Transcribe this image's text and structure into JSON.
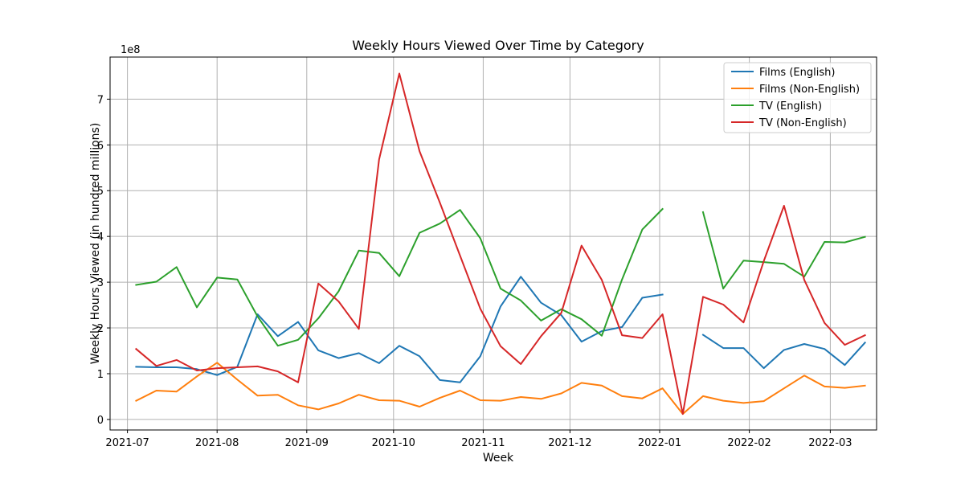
{
  "chart_data": {
    "type": "line",
    "title": "Weekly Hours Viewed Over Time by Category",
    "xlabel": "Week",
    "ylabel": "Weekly Hours Viewed (in hundred millions)",
    "y_offset_label": "1e8",
    "xlim": [
      "2021-06-25",
      "2022-03-17"
    ],
    "ylim": [
      -0.23,
      7.92
    ],
    "x_ticks": [
      "2021-07",
      "2021-08",
      "2021-09",
      "2021-10",
      "2021-11",
      "2021-12",
      "2022-01",
      "2022-02",
      "2022-03"
    ],
    "y_ticks": [
      0,
      1,
      2,
      3,
      4,
      5,
      6,
      7
    ],
    "grid": true,
    "legend_position": "top-right",
    "series": [
      {
        "name": "Films (English)",
        "color": "#1f77b4",
        "points": [
          {
            "x": "2021-07-04",
            "y": 1.15
          },
          {
            "x": "2021-07-11",
            "y": 1.14
          },
          {
            "x": "2021-07-18",
            "y": 1.14
          },
          {
            "x": "2021-07-25",
            "y": 1.1
          },
          {
            "x": "2021-08-01",
            "y": 0.97
          },
          {
            "x": "2021-08-08",
            "y": 1.15
          },
          {
            "x": "2021-08-15",
            "y": 2.3
          },
          {
            "x": "2021-08-22",
            "y": 1.82
          },
          {
            "x": "2021-08-29",
            "y": 2.13
          },
          {
            "x": "2021-09-05",
            "y": 1.51
          },
          {
            "x": "2021-09-12",
            "y": 1.34
          },
          {
            "x": "2021-09-19",
            "y": 1.45
          },
          {
            "x": "2021-09-26",
            "y": 1.23
          },
          {
            "x": "2021-10-03",
            "y": 1.61
          },
          {
            "x": "2021-10-10",
            "y": 1.38
          },
          {
            "x": "2021-10-17",
            "y": 0.86
          },
          {
            "x": "2021-10-24",
            "y": 0.81
          },
          {
            "x": "2021-10-31",
            "y": 1.38
          },
          {
            "x": "2021-11-07",
            "y": 2.47
          },
          {
            "x": "2021-11-14",
            "y": 3.12
          },
          {
            "x": "2021-11-21",
            "y": 2.55
          },
          {
            "x": "2021-11-28",
            "y": 2.28
          },
          {
            "x": "2021-12-05",
            "y": 1.7
          },
          {
            "x": "2021-12-12",
            "y": 1.93
          },
          {
            "x": "2021-12-19",
            "y": 2.02
          },
          {
            "x": "2021-12-26",
            "y": 2.66
          },
          {
            "x": "2022-01-02",
            "y": 2.73
          },
          {
            "x": "2022-01-09",
            "y": null
          },
          {
            "x": "2022-01-16",
            "y": 1.85
          },
          {
            "x": "2022-01-23",
            "y": 1.56
          },
          {
            "x": "2022-01-30",
            "y": 1.56
          },
          {
            "x": "2022-02-06",
            "y": 1.12
          },
          {
            "x": "2022-02-13",
            "y": 1.52
          },
          {
            "x": "2022-02-20",
            "y": 1.65
          },
          {
            "x": "2022-02-27",
            "y": 1.54
          },
          {
            "x": "2022-03-06",
            "y": 1.19
          },
          {
            "x": "2022-03-13",
            "y": 1.68
          }
        ]
      },
      {
        "name": "Films (Non-English)",
        "color": "#ff7f0e",
        "points": [
          {
            "x": "2021-07-04",
            "y": 0.41
          },
          {
            "x": "2021-07-11",
            "y": 0.63
          },
          {
            "x": "2021-07-18",
            "y": 0.61
          },
          {
            "x": "2021-07-25",
            "y": 0.94
          },
          {
            "x": "2021-08-01",
            "y": 1.24
          },
          {
            "x": "2021-08-08",
            "y": 0.87
          },
          {
            "x": "2021-08-15",
            "y": 0.52
          },
          {
            "x": "2021-08-22",
            "y": 0.54
          },
          {
            "x": "2021-08-29",
            "y": 0.31
          },
          {
            "x": "2021-09-05",
            "y": 0.22
          },
          {
            "x": "2021-09-12",
            "y": 0.35
          },
          {
            "x": "2021-09-19",
            "y": 0.54
          },
          {
            "x": "2021-09-26",
            "y": 0.42
          },
          {
            "x": "2021-10-03",
            "y": 0.41
          },
          {
            "x": "2021-10-10",
            "y": 0.28
          },
          {
            "x": "2021-10-17",
            "y": 0.47
          },
          {
            "x": "2021-10-24",
            "y": 0.63
          },
          {
            "x": "2021-10-31",
            "y": 0.42
          },
          {
            "x": "2021-11-07",
            "y": 0.41
          },
          {
            "x": "2021-11-14",
            "y": 0.49
          },
          {
            "x": "2021-11-21",
            "y": 0.45
          },
          {
            "x": "2021-11-28",
            "y": 0.57
          },
          {
            "x": "2021-12-05",
            "y": 0.8
          },
          {
            "x": "2021-12-12",
            "y": 0.74
          },
          {
            "x": "2021-12-19",
            "y": 0.51
          },
          {
            "x": "2021-12-26",
            "y": 0.46
          },
          {
            "x": "2022-01-02",
            "y": 0.68
          },
          {
            "x": "2022-01-09",
            "y": 0.12
          },
          {
            "x": "2022-01-16",
            "y": 0.51
          },
          {
            "x": "2022-01-23",
            "y": 0.41
          },
          {
            "x": "2022-01-30",
            "y": 0.36
          },
          {
            "x": "2022-02-06",
            "y": 0.4
          },
          {
            "x": "2022-02-13",
            "y": 0.68
          },
          {
            "x": "2022-02-20",
            "y": 0.96
          },
          {
            "x": "2022-02-27",
            "y": 0.72
          },
          {
            "x": "2022-03-06",
            "y": 0.69
          },
          {
            "x": "2022-03-13",
            "y": 0.74
          }
        ]
      },
      {
        "name": "TV (English)",
        "color": "#2ca02c",
        "points": [
          {
            "x": "2021-07-04",
            "y": 2.94
          },
          {
            "x": "2021-07-11",
            "y": 3.01
          },
          {
            "x": "2021-07-18",
            "y": 3.33
          },
          {
            "x": "2021-07-25",
            "y": 2.45
          },
          {
            "x": "2021-08-01",
            "y": 3.1
          },
          {
            "x": "2021-08-08",
            "y": 3.06
          },
          {
            "x": "2021-08-15",
            "y": 2.25
          },
          {
            "x": "2021-08-22",
            "y": 1.61
          },
          {
            "x": "2021-08-29",
            "y": 1.74
          },
          {
            "x": "2021-09-05",
            "y": 2.21
          },
          {
            "x": "2021-09-12",
            "y": 2.8
          },
          {
            "x": "2021-09-19",
            "y": 3.69
          },
          {
            "x": "2021-09-26",
            "y": 3.64
          },
          {
            "x": "2021-10-03",
            "y": 3.13
          },
          {
            "x": "2021-10-10",
            "y": 4.08
          },
          {
            "x": "2021-10-17",
            "y": 4.28
          },
          {
            "x": "2021-10-24",
            "y": 4.58
          },
          {
            "x": "2021-10-31",
            "y": 3.96
          },
          {
            "x": "2021-11-07",
            "y": 2.86
          },
          {
            "x": "2021-11-14",
            "y": 2.6
          },
          {
            "x": "2021-11-21",
            "y": 2.16
          },
          {
            "x": "2021-11-28",
            "y": 2.41
          },
          {
            "x": "2021-12-05",
            "y": 2.19
          },
          {
            "x": "2021-12-12",
            "y": 1.83
          },
          {
            "x": "2021-12-19",
            "y": 3.06
          },
          {
            "x": "2021-12-26",
            "y": 4.15
          },
          {
            "x": "2022-01-02",
            "y": 4.6
          },
          {
            "x": "2022-01-09",
            "y": null
          },
          {
            "x": "2022-01-16",
            "y": 4.53
          },
          {
            "x": "2022-01-23",
            "y": 2.86
          },
          {
            "x": "2022-01-30",
            "y": 3.47
          },
          {
            "x": "2022-02-06",
            "y": 3.44
          },
          {
            "x": "2022-02-13",
            "y": 3.4
          },
          {
            "x": "2022-02-20",
            "y": 3.12
          },
          {
            "x": "2022-02-27",
            "y": 3.88
          },
          {
            "x": "2022-03-06",
            "y": 3.87
          },
          {
            "x": "2022-03-13",
            "y": 3.99
          }
        ]
      },
      {
        "name": "TV (Non-English)",
        "color": "#d62728",
        "points": [
          {
            "x": "2021-07-04",
            "y": 1.54
          },
          {
            "x": "2021-07-11",
            "y": 1.17
          },
          {
            "x": "2021-07-18",
            "y": 1.3
          },
          {
            "x": "2021-07-25",
            "y": 1.07
          },
          {
            "x": "2021-08-01",
            "y": 1.12
          },
          {
            "x": "2021-08-08",
            "y": 1.14
          },
          {
            "x": "2021-08-15",
            "y": 1.16
          },
          {
            "x": "2021-08-22",
            "y": 1.05
          },
          {
            "x": "2021-08-29",
            "y": 0.81
          },
          {
            "x": "2021-09-05",
            "y": 2.97
          },
          {
            "x": "2021-09-12",
            "y": 2.58
          },
          {
            "x": "2021-09-19",
            "y": 1.98
          },
          {
            "x": "2021-09-26",
            "y": 5.68
          },
          {
            "x": "2021-10-03",
            "y": 7.56
          },
          {
            "x": "2021-10-10",
            "y": 5.86
          },
          {
            "x": "2021-10-17",
            "y": 4.74
          },
          {
            "x": "2021-10-24",
            "y": 3.58
          },
          {
            "x": "2021-10-31",
            "y": 2.42
          },
          {
            "x": "2021-11-07",
            "y": 1.6
          },
          {
            "x": "2021-11-14",
            "y": 1.21
          },
          {
            "x": "2021-11-21",
            "y": 1.82
          },
          {
            "x": "2021-11-28",
            "y": 2.33
          },
          {
            "x": "2021-12-05",
            "y": 3.8
          },
          {
            "x": "2021-12-12",
            "y": 3.05
          },
          {
            "x": "2021-12-19",
            "y": 1.84
          },
          {
            "x": "2021-12-26",
            "y": 1.78
          },
          {
            "x": "2022-01-02",
            "y": 2.3
          },
          {
            "x": "2022-01-09",
            "y": 0.12
          },
          {
            "x": "2022-01-16",
            "y": 2.68
          },
          {
            "x": "2022-01-23",
            "y": 2.51
          },
          {
            "x": "2022-01-30",
            "y": 2.12
          },
          {
            "x": "2022-02-06",
            "y": 3.46
          },
          {
            "x": "2022-02-13",
            "y": 4.67
          },
          {
            "x": "2022-02-20",
            "y": 3.05
          },
          {
            "x": "2022-02-27",
            "y": 2.11
          },
          {
            "x": "2022-03-06",
            "y": 1.63
          },
          {
            "x": "2022-03-13",
            "y": 1.84
          }
        ]
      }
    ]
  }
}
